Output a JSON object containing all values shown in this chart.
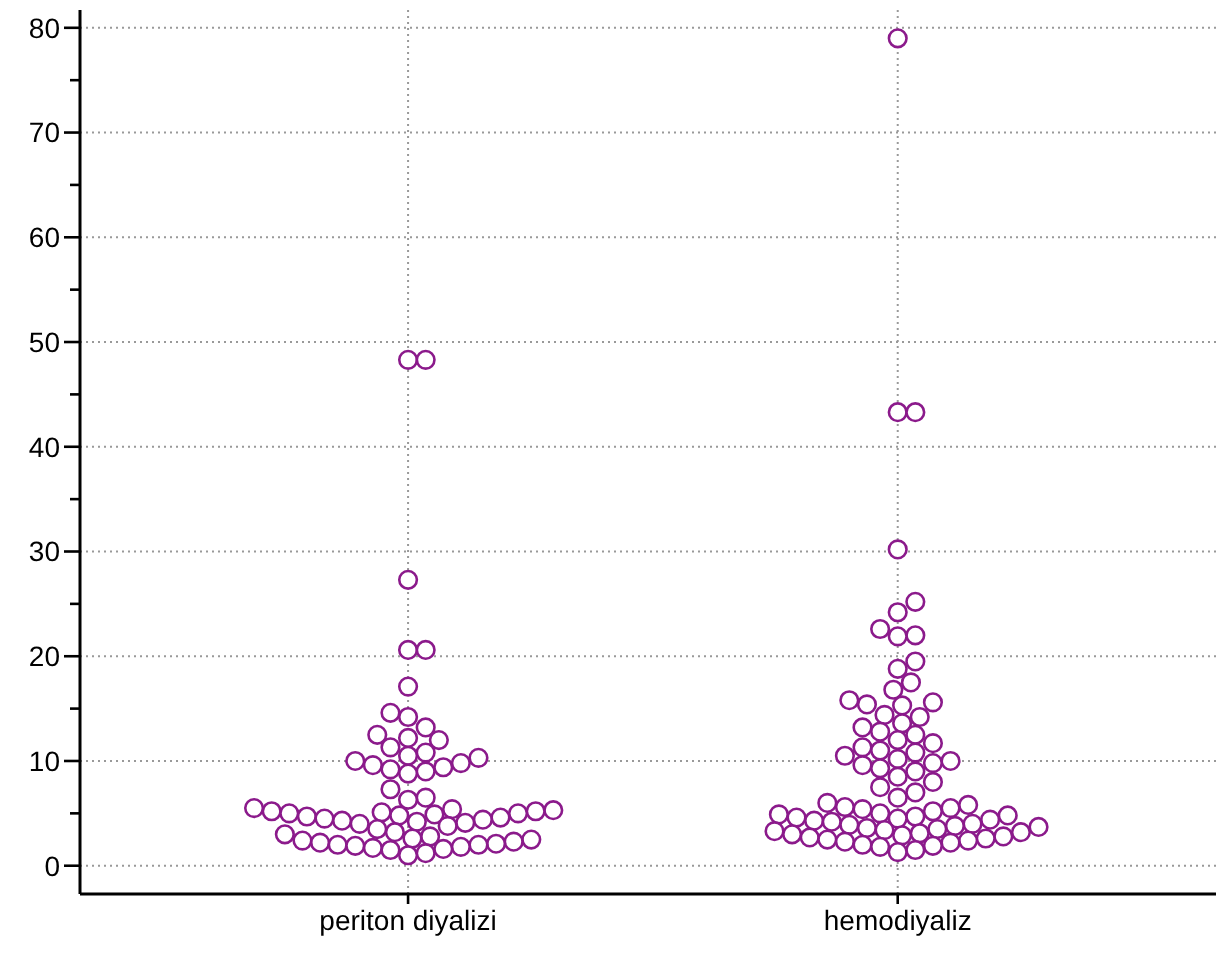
{
  "chart_data": {
    "type": "scatter",
    "categories": [
      "periton diyalizi",
      "hemodiyaliz"
    ],
    "series": [
      {
        "color": "#8b1a8b",
        "x": [
          "periton diyalizi",
          "periton diyalizi",
          "periton diyalizi",
          "periton diyalizi",
          "periton diyalizi",
          "periton diyalizi",
          "periton diyalizi",
          "periton diyalizi",
          "periton diyalizi",
          "periton diyalizi",
          "periton diyalizi",
          "periton diyalizi",
          "periton diyalizi",
          "periton diyalizi",
          "periton diyalizi",
          "periton diyalizi",
          "periton diyalizi",
          "periton diyalizi",
          "periton diyalizi",
          "periton diyalizi",
          "periton diyalizi",
          "periton diyalizi",
          "periton diyalizi",
          "periton diyalizi",
          "periton diyalizi",
          "periton diyalizi",
          "periton diyalizi",
          "periton diyalizi",
          "periton diyalizi",
          "periton diyalizi",
          "periton diyalizi",
          "periton diyalizi",
          "periton diyalizi",
          "periton diyalizi",
          "periton diyalizi",
          "periton diyalizi",
          "periton diyalizi",
          "periton diyalizi",
          "periton diyalizi",
          "periton diyalizi",
          "periton diyalizi",
          "periton diyalizi",
          "periton diyalizi",
          "periton diyalizi",
          "periton diyalizi",
          "periton diyalizi",
          "periton diyalizi",
          "periton diyalizi",
          "periton diyalizi",
          "periton diyalizi",
          "periton diyalizi",
          "periton diyalizi",
          "periton diyalizi",
          "periton diyalizi",
          "periton diyalizi",
          "periton diyalizi",
          "periton diyalizi",
          "periton diyalizi",
          "periton diyalizi",
          "periton diyalizi",
          "periton diyalizi",
          "periton diyalizi",
          "periton diyalizi",
          "periton diyalizi"
        ],
        "values": [
          48.3,
          48.3,
          27.3,
          20.6,
          20.6,
          17.1,
          14.6,
          14.2,
          13.2,
          12.5,
          12.2,
          12.0,
          11.3,
          10.8,
          10.5,
          10.3,
          10.0,
          9.8,
          9.6,
          9.4,
          9.2,
          9.0,
          8.8,
          7.3,
          6.5,
          6.3,
          5.5,
          5.4,
          5.3,
          5.2,
          5.2,
          5.1,
          5.0,
          5.0,
          4.9,
          4.8,
          4.7,
          4.6,
          4.5,
          4.4,
          4.3,
          4.2,
          4.1,
          4.0,
          3.8,
          3.5,
          3.2,
          3.0,
          2.8,
          2.6,
          2.5,
          2.4,
          2.3,
          2.2,
          2.1,
          2.0,
          2.0,
          1.9,
          1.8,
          1.7,
          1.6,
          1.5,
          1.2,
          1.0
        ]
      },
      {
        "color": "#8b1a8b",
        "x": [
          "hemodiyaliz",
          "hemodiyaliz",
          "hemodiyaliz",
          "hemodiyaliz",
          "hemodiyaliz",
          "hemodiyaliz",
          "hemodiyaliz",
          "hemodiyaliz",
          "hemodiyaliz",
          "hemodiyaliz",
          "hemodiyaliz",
          "hemodiyaliz",
          "hemodiyaliz",
          "hemodiyaliz",
          "hemodiyaliz",
          "hemodiyaliz",
          "hemodiyaliz",
          "hemodiyaliz",
          "hemodiyaliz",
          "hemodiyaliz",
          "hemodiyaliz",
          "hemodiyaliz",
          "hemodiyaliz",
          "hemodiyaliz",
          "hemodiyaliz",
          "hemodiyaliz",
          "hemodiyaliz",
          "hemodiyaliz",
          "hemodiyaliz",
          "hemodiyaliz",
          "hemodiyaliz",
          "hemodiyaliz",
          "hemodiyaliz",
          "hemodiyaliz",
          "hemodiyaliz",
          "hemodiyaliz",
          "hemodiyaliz",
          "hemodiyaliz",
          "hemodiyaliz",
          "hemodiyaliz",
          "hemodiyaliz",
          "hemodiyaliz",
          "hemodiyaliz",
          "hemodiyaliz",
          "hemodiyaliz",
          "hemodiyaliz",
          "hemodiyaliz",
          "hemodiyaliz",
          "hemodiyaliz",
          "hemodiyaliz",
          "hemodiyaliz",
          "hemodiyaliz",
          "hemodiyaliz",
          "hemodiyaliz",
          "hemodiyaliz",
          "hemodiyaliz",
          "hemodiyaliz",
          "hemodiyaliz",
          "hemodiyaliz",
          "hemodiyaliz",
          "hemodiyaliz",
          "hemodiyaliz",
          "hemodiyaliz",
          "hemodiyaliz",
          "hemodiyaliz",
          "hemodiyaliz",
          "hemodiyaliz",
          "hemodiyaliz",
          "hemodiyaliz",
          "hemodiyaliz",
          "hemodiyaliz",
          "hemodiyaliz",
          "hemodiyaliz",
          "hemodiyaliz",
          "hemodiyaliz",
          "hemodiyaliz",
          "hemodiyaliz",
          "hemodiyaliz",
          "hemodiyaliz"
        ],
        "values": [
          79,
          43.3,
          43.3,
          30.2,
          25.2,
          24.2,
          22.6,
          22.0,
          21.9,
          19.5,
          18.8,
          17.5,
          16.8,
          15.8,
          15.6,
          15.4,
          15.3,
          14.4,
          14.2,
          13.6,
          13.2,
          12.8,
          12.5,
          12.0,
          11.7,
          11.3,
          11.0,
          10.8,
          10.5,
          10.2,
          10.0,
          9.8,
          9.6,
          9.3,
          9.0,
          8.5,
          8.0,
          7.5,
          7.0,
          6.5,
          6.0,
          5.8,
          5.6,
          5.5,
          5.4,
          5.2,
          5.0,
          4.9,
          4.8,
          4.7,
          4.6,
          4.5,
          4.4,
          4.3,
          4.2,
          4.0,
          3.9,
          3.8,
          3.7,
          3.6,
          3.5,
          3.4,
          3.3,
          3.2,
          3.1,
          3.0,
          2.9,
          2.8,
          2.7,
          2.6,
          2.5,
          2.4,
          2.3,
          2.2,
          2.0,
          1.9,
          1.8,
          1.5,
          1.3
        ]
      }
    ],
    "ylim": [
      -2.7,
      81.7
    ],
    "yticks": [
      0,
      {
        "value": 5,
        "label": null
      },
      10,
      {
        "value": 15,
        "label": null
      },
      20,
      {
        "value": 25,
        "label": null
      },
      30,
      {
        "value": 35,
        "label": null
      },
      40,
      {
        "value": 45,
        "label": null
      },
      50,
      {
        "value": 55,
        "label": null
      },
      60,
      {
        "value": 65,
        "label": null
      },
      70,
      {
        "value": 75,
        "label": null
      },
      80
    ],
    "grid": true,
    "marker": "circle"
  }
}
